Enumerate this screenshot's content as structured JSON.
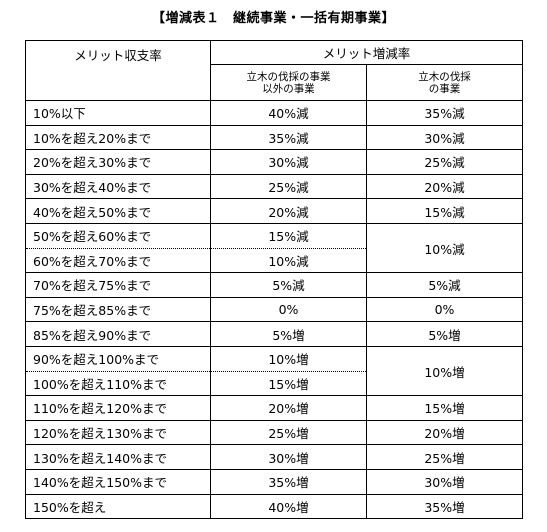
{
  "title": "【増減表１　継続事業・一括有期事業】",
  "headers": {
    "col1": "メリット収支率",
    "col2": "メリット増減率",
    "sub_a": [
      "立木の伐採の事業",
      "以外の事業"
    ],
    "sub_b": [
      "立木の伐採",
      "の事業"
    ]
  },
  "rows": [
    {
      "range": "10%以下",
      "a": "40%減",
      "b": "35%減"
    },
    {
      "range": "10%を超え20%まで",
      "a": "35%減",
      "b": "30%減"
    },
    {
      "range": "20%を超え30%まで",
      "a": "30%減",
      "b": "25%減"
    },
    {
      "range": "30%を超え40%まで",
      "a": "25%減",
      "b": "20%減"
    },
    {
      "range": "40%を超え50%まで",
      "a": "20%減",
      "b": "15%減"
    },
    {
      "range": "50%を超え60%まで",
      "a": "15%減",
      "b": "10%減"
    },
    {
      "range": "60%を超え70%まで",
      "a": "10%減",
      "b": ""
    },
    {
      "range": "70%を超え75%まで",
      "a": "5%減",
      "b": "5%減"
    },
    {
      "range": "75%を超え85%まで",
      "a": "0%",
      "b": "0%"
    },
    {
      "range": "85%を超え90%まで",
      "a": "5%増",
      "b": "5%増"
    },
    {
      "range": "90%を超え100%まで",
      "a": "10%増",
      "b": "10%増"
    },
    {
      "range": "100%を超え110%まで",
      "a": "15%増",
      "b": ""
    },
    {
      "range": "110%を超え120%まで",
      "a": "20%増",
      "b": "15%増"
    },
    {
      "range": "120%を超え130%まで",
      "a": "25%増",
      "b": "20%増"
    },
    {
      "range": "130%を超え140%まで",
      "a": "30%増",
      "b": "25%増"
    },
    {
      "range": "140%を超え150%まで",
      "a": "35%増",
      "b": "30%増"
    },
    {
      "range": "150%を超え",
      "a": "40%増",
      "b": "35%増"
    }
  ]
}
